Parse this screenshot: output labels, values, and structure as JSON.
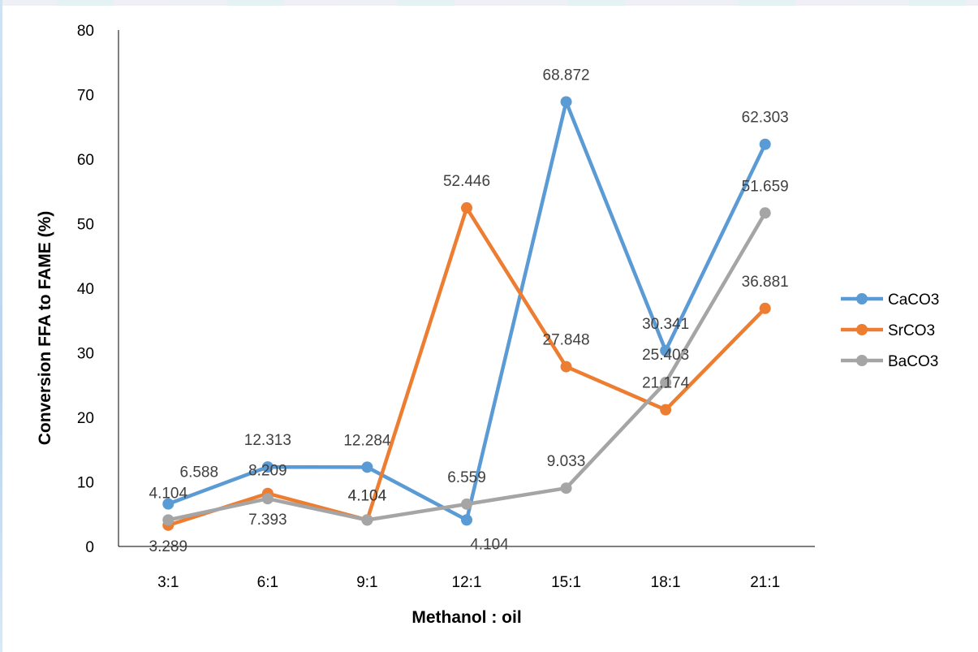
{
  "chart_data": {
    "type": "line",
    "title": "",
    "xlabel": "Methanol : oil",
    "ylabel": "Conversion FFA to FAME (%)",
    "categories": [
      "3:1",
      "6:1",
      "9:1",
      "12:1",
      "15:1",
      "18:1",
      "21:1"
    ],
    "ylim": [
      0,
      80
    ],
    "yticks": [
      0,
      10,
      20,
      30,
      40,
      50,
      60,
      70,
      80
    ],
    "grid": false,
    "legend_position": "right",
    "series": [
      {
        "name": "CaCO3",
        "color": "#5b9bd5",
        "values": [
          6.588,
          12.313,
          12.284,
          4.104,
          68.872,
          30.341,
          62.303
        ],
        "labels": [
          "6.588",
          "12.313",
          "12.284",
          "4.104",
          "68.872",
          "30.341",
          "62.303"
        ]
      },
      {
        "name": "SrCO3",
        "color": "#ed7d31",
        "values": [
          3.289,
          8.209,
          4.104,
          52.446,
          27.848,
          21.174,
          36.881
        ],
        "labels": [
          "3.289",
          "8.209",
          "4.104",
          "52.446",
          "27.848",
          "21.174",
          "36.881"
        ]
      },
      {
        "name": "BaCO3",
        "color": "#a5a5a5",
        "values": [
          4.104,
          7.393,
          4.104,
          6.559,
          9.033,
          25.403,
          51.659
        ],
        "labels": [
          "4.104",
          "7.393",
          "4.104",
          "6.559",
          "9.033",
          "25.403",
          "51.659"
        ]
      }
    ]
  }
}
